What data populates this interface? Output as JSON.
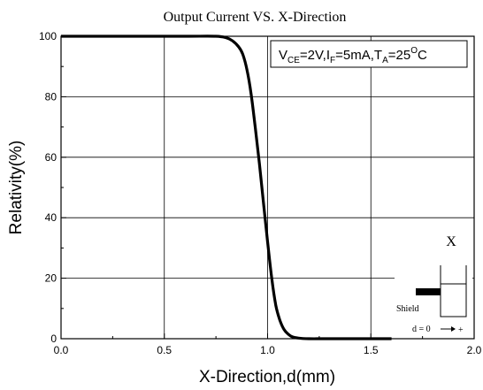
{
  "chart_data": {
    "type": "line",
    "title": "Output Current VS. X-Direction",
    "xlabel": "X-Direction,d(mm)",
    "ylabel": "Relativity(%)",
    "xlim": [
      0.0,
      2.0
    ],
    "ylim": [
      0,
      100
    ],
    "xticks": [
      "0.0",
      "0.5",
      "1.0",
      "1.5",
      "2.0"
    ],
    "yticks": [
      "0",
      "20",
      "40",
      "60",
      "80",
      "100"
    ],
    "grid": true,
    "condition": {
      "v": "V",
      "v_sub": "CE",
      "v_val": "=2V,",
      "i": "I",
      "i_sub": "F",
      "i_val": "=5mA,",
      "t": "T",
      "t_sub": "A",
      "t_val": "=25",
      "deg": "O",
      "unit": "C"
    },
    "series": [
      {
        "x": [
          0.0,
          0.3,
          0.6,
          0.75,
          0.8,
          0.83,
          0.86,
          0.88,
          0.9,
          0.92,
          0.94,
          0.96,
          0.98,
          1.0,
          1.02,
          1.04,
          1.06,
          1.08,
          1.1,
          1.12,
          1.15,
          1.2,
          1.3,
          1.6
        ],
        "y": [
          100,
          100,
          100,
          100,
          99.5,
          98.5,
          96.5,
          94,
          89,
          81,
          70,
          58,
          45,
          32,
          20,
          11,
          6,
          3,
          1.5,
          0.6,
          0.2,
          0,
          0,
          0
        ]
      }
    ]
  },
  "inset": {
    "label": "X",
    "shield_label": "Shield",
    "direction_label": "d = 0",
    "plus_label": "+"
  }
}
